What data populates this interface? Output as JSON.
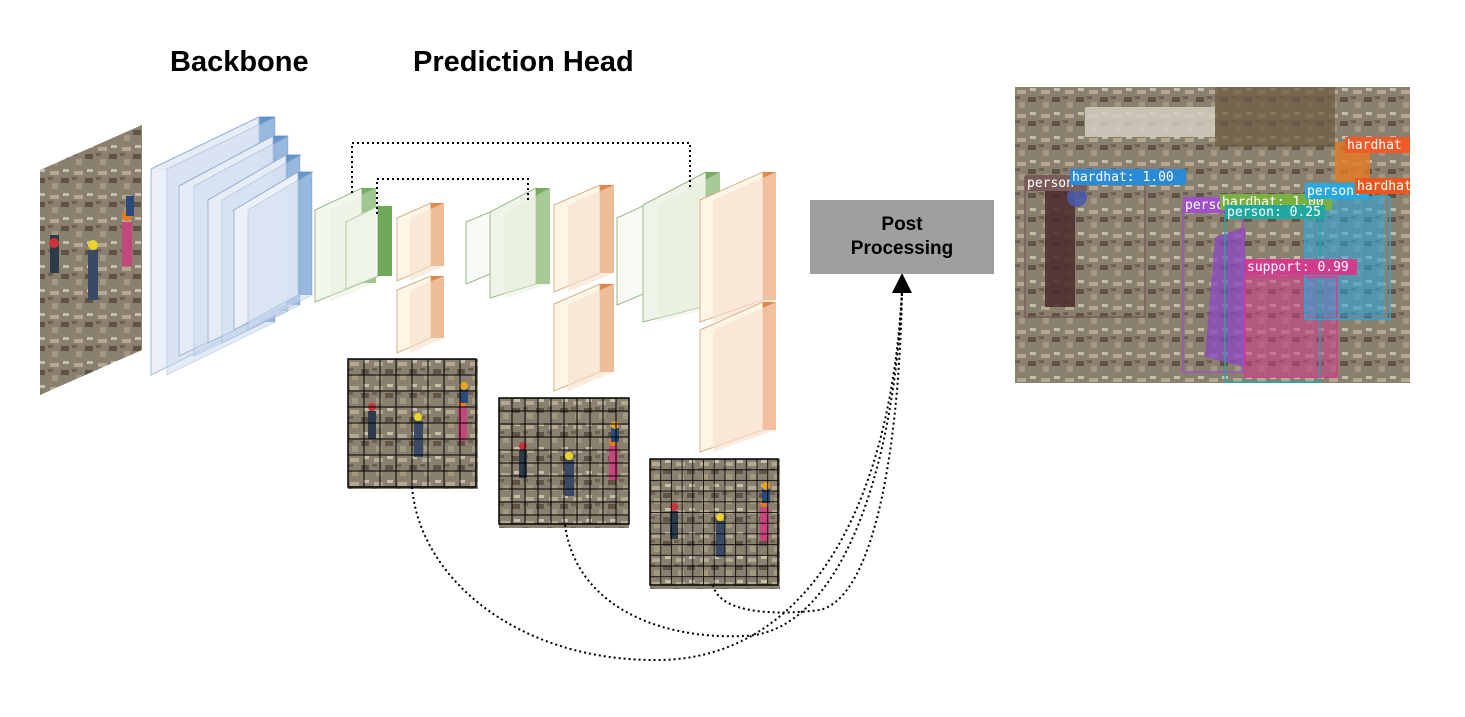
{
  "titles": {
    "backbone": "Backbone",
    "prediction_head": "Prediction Head"
  },
  "post_processing": {
    "line1": "Post",
    "line2": "Processing"
  },
  "detections": [
    {
      "label": "person",
      "color": "#7a5a5a"
    },
    {
      "label": "hardhat: 1.00",
      "color": "#2a8ad8"
    },
    {
      "label": "person",
      "color": "#a050c8"
    },
    {
      "label": "hardhat: 1.00",
      "color": "#7ab040"
    },
    {
      "label": "person: 0.25",
      "color": "#20a8a0"
    },
    {
      "label": "support: 0.99",
      "color": "#d23c8c"
    },
    {
      "label": "person:",
      "color": "#28a8e0"
    },
    {
      "label": "hardhat",
      "color": "#f05a28"
    },
    {
      "label": "hardhat",
      "color": "#e8581e"
    }
  ],
  "colors": {
    "backbone_fill": "#c9d9ee",
    "backbone_side": "#4f86c6",
    "neck_fill": "#e2eed8",
    "neck_side": "#5f9f47",
    "head_fill": "#fdf1da",
    "head_side": "#e2874b",
    "post_box": "#a19e9e"
  }
}
